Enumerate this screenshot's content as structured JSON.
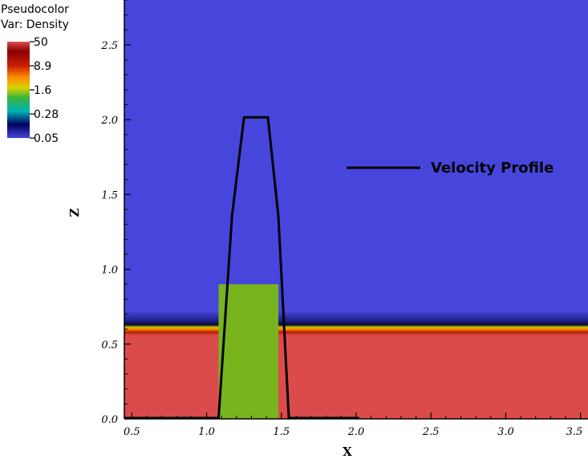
{
  "legend": {
    "title": "Pseudocolor",
    "variable": "Var: Density",
    "labels": [
      "50",
      "8.9",
      "1.6",
      "0.28",
      "0.05"
    ]
  },
  "colors": {
    "upper_fluid": "#4646dc",
    "lower_fluid": "#dc4b4b",
    "block": "#78b41e",
    "curve": "#000000",
    "colorbar_stops": [
      "#dc4b4b",
      "#7a0000",
      "#c82000",
      "#ff8c00",
      "#d4d400",
      "#3cb43c",
      "#00b4b4",
      "#000060",
      "#4646dc"
    ]
  },
  "chart_data": {
    "type": "heatmap",
    "xlabel": "X",
    "ylabel": "Z",
    "xlim": [
      0.45,
      3.55
    ],
    "ylim": [
      0.0,
      2.8
    ],
    "x_ticks": [
      "0.5",
      "1.0",
      "1.5",
      "2.0",
      "2.5",
      "3.0",
      "3.5"
    ],
    "y_ticks": [
      "0.0",
      "0.5",
      "1.0",
      "1.5",
      "2.0",
      "2.5"
    ],
    "interface": {
      "z": 0.6,
      "density_above": 0.05,
      "density_below": 50
    },
    "block": {
      "x0": 1.08,
      "x1": 1.48,
      "z0": 0.0,
      "z1": 0.9,
      "density": 1.6
    },
    "series": [
      {
        "name": "Velocity Profile",
        "x": [
          0.45,
          1.08,
          1.17,
          1.25,
          1.41,
          1.48,
          1.55,
          2.02
        ],
        "y": [
          0.0,
          0.0,
          1.35,
          2.01,
          2.01,
          1.35,
          0.0,
          0.0
        ]
      }
    ],
    "annotation": {
      "text": "Velocity Profile"
    }
  }
}
